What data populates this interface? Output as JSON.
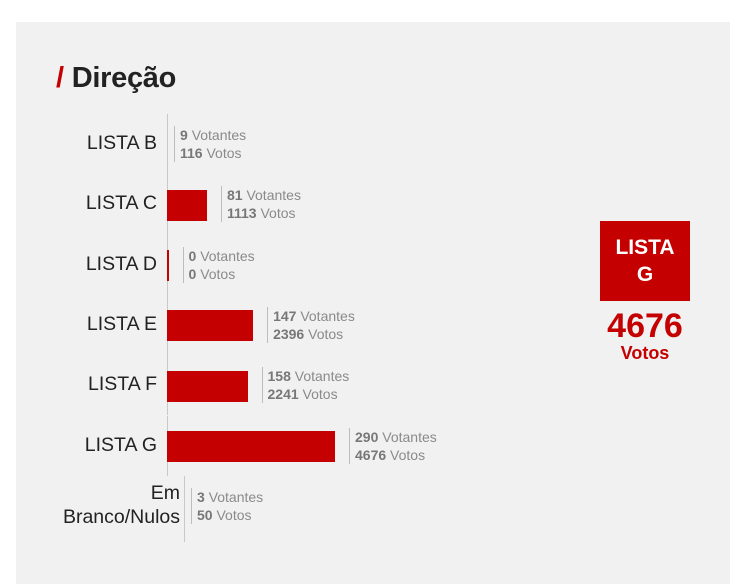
{
  "title": "Direção",
  "title_slash": "/",
  "winner": {
    "line1": "LISTA",
    "line2": "G",
    "value": "4676",
    "unit": "Votos"
  },
  "chart_data": {
    "type": "bar",
    "orientation": "horizontal",
    "title": "Direção",
    "value_field": "votos",
    "categories": [
      "LISTA B",
      "LISTA C",
      "LISTA D",
      "LISTA E",
      "LISTA F",
      "LISTA G",
      "Em Branco/Nulos"
    ],
    "category_lines": [
      [
        "LISTA B"
      ],
      [
        "LISTA C"
      ],
      [
        "LISTA D"
      ],
      [
        "LISTA E"
      ],
      [
        "LISTA F"
      ],
      [
        "LISTA G"
      ],
      [
        "Em",
        "Branco/Nulos"
      ]
    ],
    "votantes": [
      9,
      81,
      0,
      147,
      158,
      290,
      3
    ],
    "votos": [
      116,
      1113,
      0,
      2396,
      2241,
      4676,
      50
    ],
    "bar_visible": [
      false,
      true,
      true,
      true,
      true,
      true,
      false
    ],
    "label_votantes": "Votantes",
    "label_votos": "Votos",
    "color": "#c40000"
  }
}
